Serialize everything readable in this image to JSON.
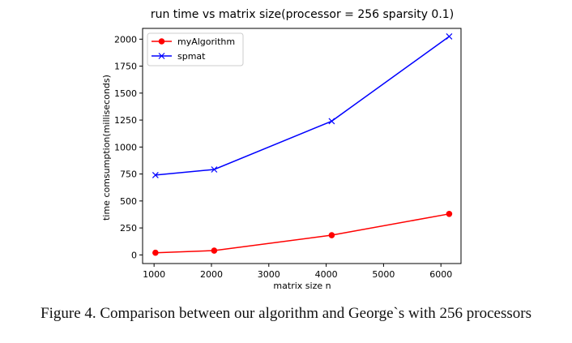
{
  "chart_data": {
    "type": "line",
    "title": "run time vs matrix size(processor = 256 sparsity 0.1)",
    "xlabel": "matrix size n",
    "ylabel": "time comsumption(milliseconds)",
    "x": [
      1024,
      2048,
      4096,
      6144
    ],
    "xlim": [
      800,
      6350
    ],
    "ylim": [
      -80,
      2100
    ],
    "xticks": [
      1000,
      2000,
      3000,
      4000,
      5000,
      6000
    ],
    "yticks": [
      0,
      250,
      500,
      750,
      1000,
      1250,
      1500,
      1750,
      2000
    ],
    "legend_position": "upper-left",
    "series": [
      {
        "name": "myAlgorithm",
        "color": "#ff0000",
        "marker": "circle",
        "values": [
          20,
          40,
          183,
          380
        ]
      },
      {
        "name": "spmat",
        "color": "#0000ff",
        "marker": "x",
        "values": [
          740,
          792,
          1240,
          2025
        ]
      }
    ]
  },
  "caption": "Figure 4. Comparison between our algorithm and George`s with 256 processors"
}
